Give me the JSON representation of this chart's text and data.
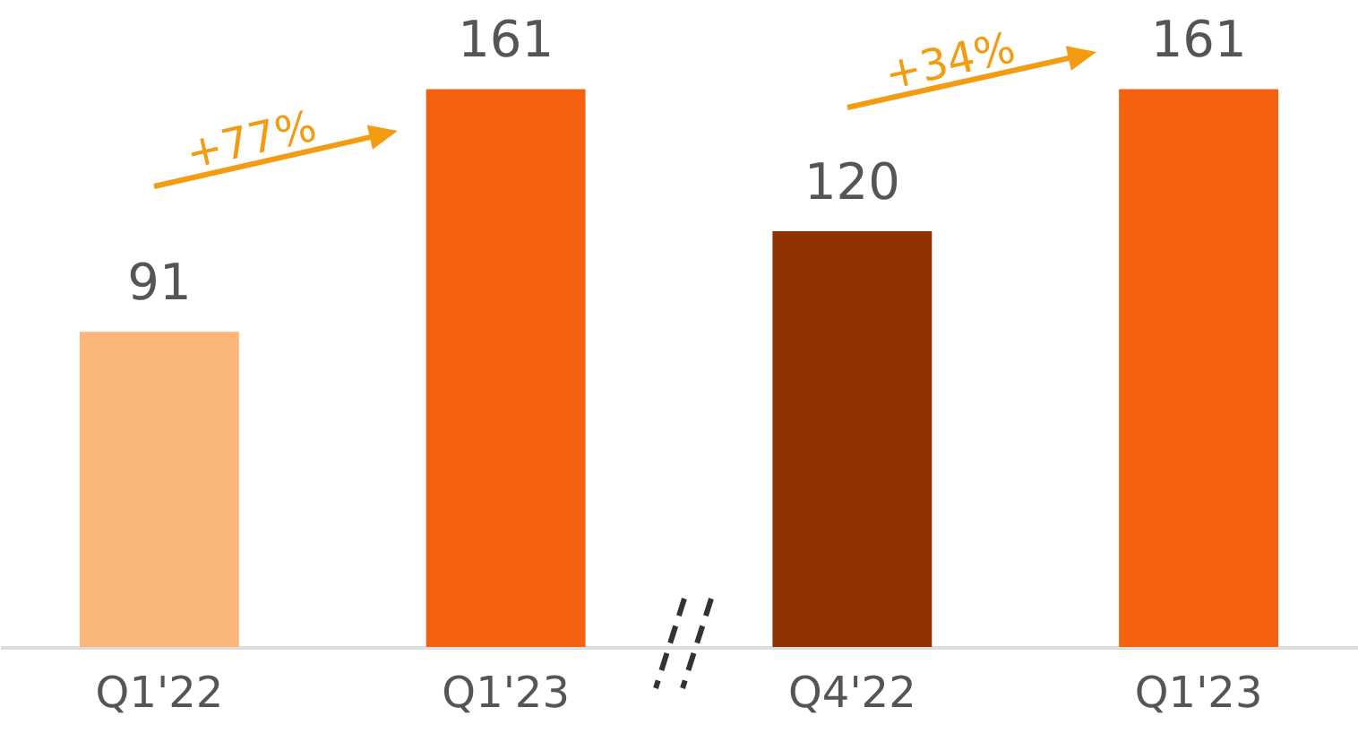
{
  "chart_data": {
    "type": "bar",
    "categories": [
      "Q1'22",
      "Q1'23",
      "Q4'22",
      "Q1'23"
    ],
    "values": [
      91,
      161,
      120,
      161
    ],
    "colors": [
      "#fbb77a",
      "#f5610f",
      "#923200",
      "#f5610f"
    ],
    "data_labels": true,
    "grid": false,
    "annotations": [
      "+77%",
      "+34%"
    ]
  }
}
